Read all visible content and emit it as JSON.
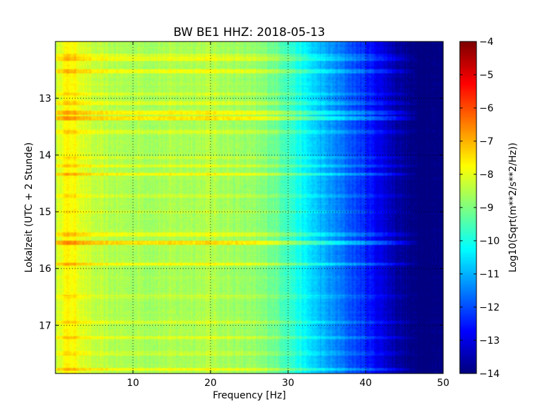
{
  "chart_data": {
    "type": "heatmap",
    "title": "BW BE1 HHZ: 2018-05-13",
    "xlabel": "Frequency [Hz]",
    "ylabel": "Lokalzeit (UTC + 2 Stunde)",
    "colorbar_label": "Log10(Sqrt(m**2/s**2/Hz))",
    "xlim": [
      0,
      50
    ],
    "ylim": [
      12.0,
      17.85
    ],
    "y_inverted": true,
    "x_ticks": [
      10,
      20,
      30,
      40,
      50
    ],
    "x_tick_labels": [
      "10",
      "20",
      "30",
      "40",
      "50"
    ],
    "y_ticks": [
      13,
      14,
      15,
      16,
      17
    ],
    "y_tick_labels": [
      "13",
      "14",
      "15",
      "16",
      "17"
    ],
    "colorbar_range": [
      -14,
      -4
    ],
    "colorbar_ticks": [
      -4,
      -5,
      -6,
      -7,
      -8,
      -9,
      -10,
      -11,
      -12,
      -13,
      -14
    ],
    "colorbar_tick_labels": [
      "−4",
      "−5",
      "−6",
      "−7",
      "−8",
      "−9",
      "−10",
      "−11",
      "−12",
      "−13",
      "−14"
    ],
    "colormap": "jet",
    "grid": true,
    "grid_style": "dotted",
    "frequency_profile": {
      "frequency_hz": [
        0,
        1,
        2,
        3,
        4,
        5,
        7,
        10,
        15,
        20,
        25,
        28,
        30,
        32,
        34,
        36,
        38,
        40,
        41,
        42,
        43,
        44,
        45,
        46,
        48,
        50
      ],
      "log_amplitude": [
        -8.4,
        -7.8,
        -7.7,
        -7.9,
        -8.2,
        -8.4,
        -8.5,
        -8.6,
        -8.6,
        -8.5,
        -8.8,
        -9.1,
        -9.6,
        -10.3,
        -10.9,
        -11.4,
        -11.9,
        -12.4,
        -12.7,
        -13.0,
        -13.3,
        -13.6,
        -13.8,
        -14.0,
        -14.0,
        -14.0
      ]
    },
    "events": [
      {
        "time": 12.25,
        "log_offset": 0.45
      },
      {
        "time": 12.3,
        "log_offset": 0.7
      },
      {
        "time": 12.52,
        "log_offset": 0.8
      },
      {
        "time": 12.93,
        "log_offset": 0.5
      },
      {
        "time": 13.08,
        "log_offset": 0.5
      },
      {
        "time": 13.25,
        "log_offset": 0.9
      },
      {
        "time": 13.35,
        "log_offset": 1.0
      },
      {
        "time": 13.6,
        "log_offset": 0.4
      },
      {
        "time": 14.05,
        "log_offset": 0.4
      },
      {
        "time": 14.2,
        "log_offset": 0.5
      },
      {
        "time": 14.34,
        "log_offset": 0.9
      },
      {
        "time": 14.72,
        "log_offset": 0.3
      },
      {
        "time": 15.0,
        "log_offset": 0.3
      },
      {
        "time": 15.4,
        "log_offset": 0.6
      },
      {
        "time": 15.55,
        "log_offset": 1.1
      },
      {
        "time": 15.92,
        "log_offset": 0.8
      },
      {
        "time": 16.5,
        "log_offset": 0.3
      },
      {
        "time": 16.95,
        "log_offset": 0.4
      },
      {
        "time": 17.22,
        "log_offset": 0.6
      },
      {
        "time": 17.5,
        "log_offset": 0.3
      },
      {
        "time": 17.78,
        "log_offset": 0.8
      }
    ]
  }
}
